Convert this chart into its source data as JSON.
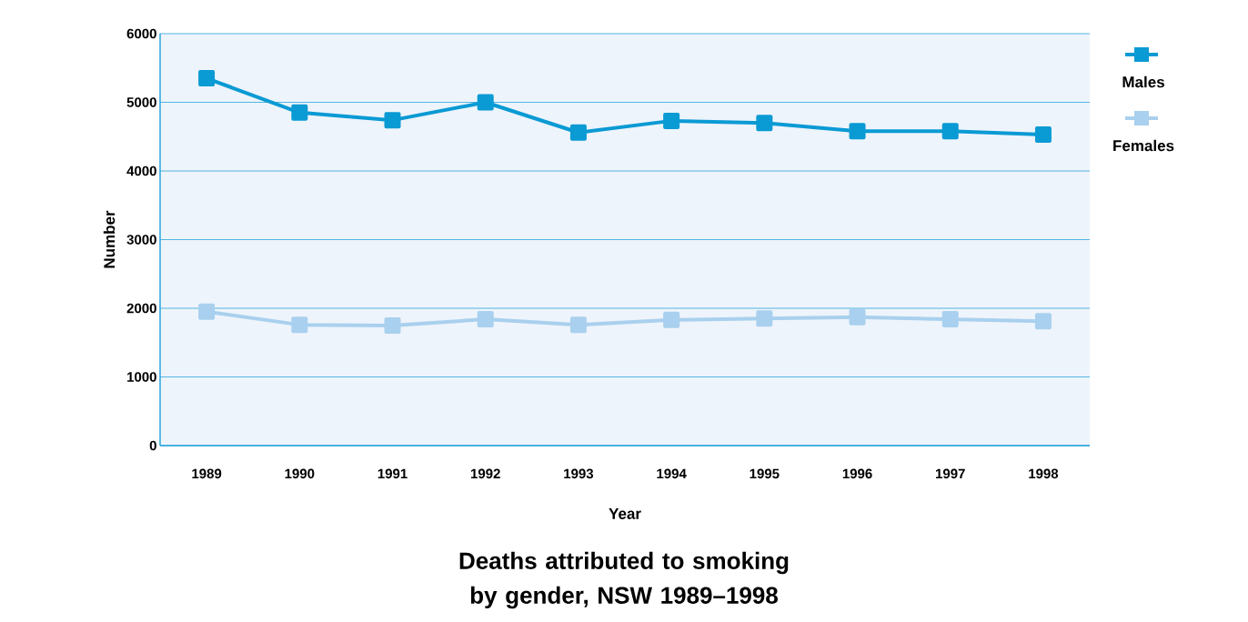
{
  "chart_data": {
    "type": "line",
    "title": "Deaths attributed to smoking by gender, NSW 1989–1998",
    "xlabel": "Year",
    "ylabel": "Number",
    "categories": [
      "1989",
      "1990",
      "1991",
      "1992",
      "1993",
      "1994",
      "1995",
      "1996",
      "1997",
      "1998"
    ],
    "series": [
      {
        "name": "Males",
        "color": "#0a9ad4",
        "values": [
          5350,
          4850,
          4740,
          5000,
          4560,
          4730,
          4700,
          4580,
          4580,
          4530
        ]
      },
      {
        "name": "Females",
        "color": "#a9d0ee",
        "values": [
          1950,
          1760,
          1750,
          1840,
          1760,
          1830,
          1850,
          1870,
          1840,
          1810
        ]
      }
    ],
    "ylim": [
      0,
      6000
    ],
    "yticks": [
      0,
      1000,
      2000,
      3000,
      4000,
      5000,
      6000
    ],
    "grid": "y",
    "legend": "top right",
    "marker": "square",
    "line_style": "solid"
  }
}
